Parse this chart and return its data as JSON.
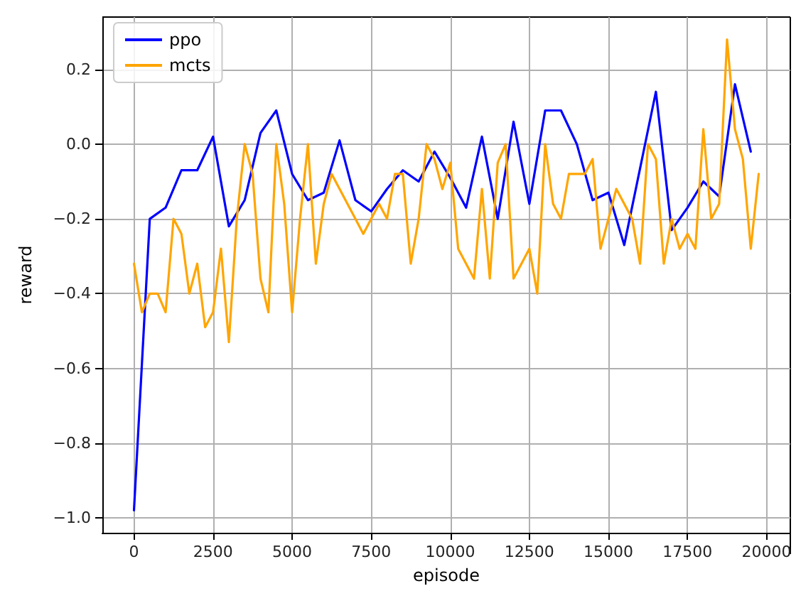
{
  "chart_data": {
    "type": "line",
    "xlabel": "episode",
    "ylabel": "reward",
    "xlim": [
      -1000,
      20750
    ],
    "xticks": [
      0,
      2500,
      5000,
      7500,
      10000,
      12500,
      15000,
      17500,
      20000
    ],
    "ylim": [
      -1.04,
      0.34
    ],
    "yticks": [
      {
        "value": -1.0,
        "label": "−1.0"
      },
      {
        "value": -0.8,
        "label": "−0.8"
      },
      {
        "value": -0.6,
        "label": "−0.6"
      },
      {
        "value": -0.4,
        "label": "−0.4"
      },
      {
        "value": -0.2,
        "label": "−0.2"
      },
      {
        "value": 0,
        "label": "0.0"
      },
      {
        "value": 0.2,
        "label": "0.2"
      }
    ],
    "grid": true,
    "legend": "top left",
    "marker": "none",
    "line_style": "solid",
    "series": [
      {
        "name": "ppo",
        "color": "#0000ff",
        "x": [
          0,
          500,
          1000,
          1500,
          2000,
          2500,
          3000,
          3500,
          4000,
          4500,
          5000,
          5500,
          6000,
          6500,
          7000,
          7500,
          8000,
          8500,
          9000,
          9500,
          10000,
          10500,
          11000,
          11500,
          12000,
          12500,
          13000,
          13500,
          14000,
          14500,
          15000,
          15500,
          16500,
          17000,
          17500,
          18000,
          18500,
          19000,
          19500
        ],
        "values": [
          -0.98,
          -0.2,
          -0.17,
          -0.07,
          -0.07,
          0.02,
          -0.22,
          -0.15,
          0.03,
          0.09,
          -0.08,
          -0.15,
          -0.13,
          0.01,
          -0.15,
          -0.18,
          -0.12,
          -0.07,
          -0.1,
          -0.02,
          -0.09,
          -0.17,
          0.02,
          -0.2,
          0.06,
          -0.16,
          0.09,
          0.09,
          0.0,
          -0.15,
          -0.13,
          -0.27,
          0.14,
          -0.23,
          -0.17,
          -0.1,
          -0.14,
          0.16,
          -0.02
        ]
      },
      {
        "name": "mcts",
        "color": "#ffa500",
        "x": [
          0,
          250,
          500,
          750,
          1000,
          1250,
          1500,
          1750,
          2000,
          2250,
          2500,
          2750,
          3000,
          3250,
          3500,
          3750,
          4000,
          4250,
          4500,
          4750,
          5000,
          5250,
          5500,
          5750,
          6000,
          6250,
          6500,
          6750,
          7000,
          7250,
          7500,
          7750,
          8000,
          8250,
          8500,
          8750,
          9000,
          9250,
          9500,
          9750,
          10000,
          10250,
          10500,
          10750,
          11000,
          11250,
          11500,
          11750,
          12000,
          12250,
          12500,
          12750,
          13000,
          13250,
          13500,
          13750,
          14000,
          14250,
          14500,
          14750,
          15000,
          15250,
          15500,
          15750,
          16000,
          16250,
          16500,
          16750,
          17000,
          17250,
          17500,
          17750,
          18000,
          18250,
          18500,
          18750,
          19000,
          19250,
          19500,
          19750
        ],
        "values": [
          -0.32,
          -0.45,
          -0.4,
          -0.4,
          -0.45,
          -0.2,
          -0.24,
          -0.4,
          -0.32,
          -0.49,
          -0.45,
          -0.28,
          -0.53,
          -0.2,
          0.0,
          -0.08,
          -0.36,
          -0.45,
          0.0,
          -0.16,
          -0.45,
          -0.2,
          0.0,
          -0.32,
          -0.16,
          -0.08,
          -0.12,
          -0.16,
          -0.2,
          -0.24,
          -0.2,
          -0.16,
          -0.2,
          -0.08,
          -0.08,
          -0.32,
          -0.2,
          0.0,
          -0.04,
          -0.12,
          -0.05,
          -0.28,
          -0.32,
          -0.36,
          -0.12,
          -0.36,
          -0.05,
          0.0,
          -0.36,
          -0.32,
          -0.28,
          -0.4,
          0.0,
          -0.16,
          -0.2,
          -0.08,
          -0.08,
          -0.08,
          -0.04,
          -0.28,
          -0.2,
          -0.12,
          -0.16,
          -0.2,
          -0.32,
          0.0,
          -0.04,
          -0.32,
          -0.2,
          -0.28,
          -0.24,
          -0.28,
          0.04,
          -0.2,
          -0.16,
          0.28,
          0.04,
          -0.04,
          -0.28,
          -0.08
        ]
      }
    ]
  }
}
